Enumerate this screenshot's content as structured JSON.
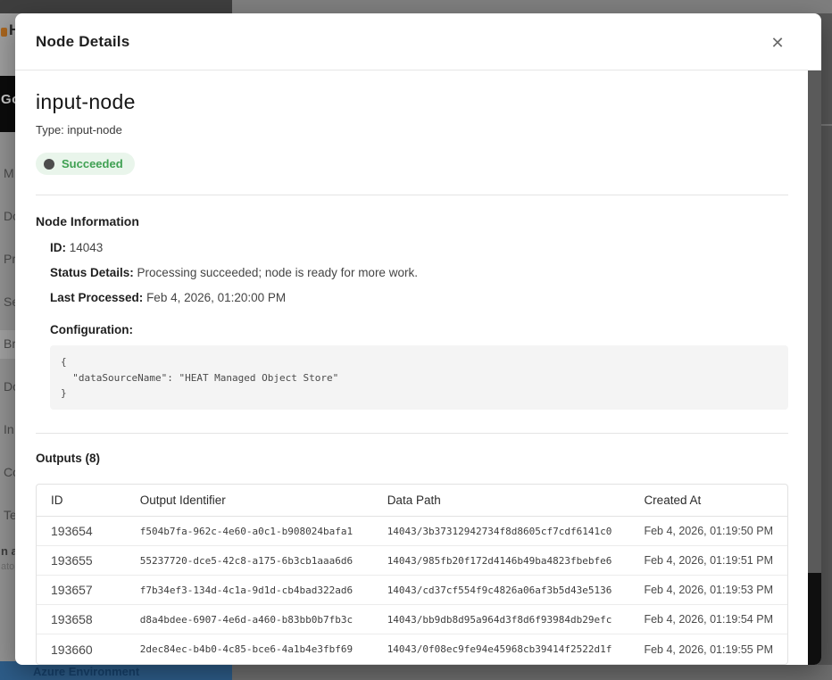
{
  "backdrop": {
    "header_fragment": "H",
    "logo_fragment": "Go",
    "sidebar_fragments": [
      "M",
      "Do",
      "Pr",
      "Se",
      "Br",
      "Do",
      "In",
      "Co",
      "Te"
    ],
    "sidebar_bold_fragment": "n a",
    "sidebar_small_fragment": "ator",
    "bottom_bar_label": "Azure Environment"
  },
  "modal": {
    "title": "Node Details",
    "close_glyph": "✕",
    "node_name": "input-node",
    "node_type_label": "Type: input-node",
    "status_label": "Succeeded",
    "node_information": {
      "heading": "Node Information",
      "id_label": "ID:",
      "id_value": "14043",
      "status_details_label": "Status Details:",
      "status_details_value": "Processing succeeded; node is ready for more work.",
      "last_processed_label": "Last Processed:",
      "last_processed_value": "Feb 4, 2026, 01:20:00 PM",
      "configuration_label": "Configuration:",
      "configuration_code": "{\n  \"dataSourceName\": \"HEAT Managed Object Store\"\n}"
    },
    "outputs": {
      "heading": "Outputs (8)",
      "columns": [
        "ID",
        "Output Identifier",
        "Data Path",
        "Created At"
      ],
      "rows": [
        {
          "id": "193654",
          "identifier": "f504b7fa-962c-4e60-a0c1-b908024bafa1",
          "data_path": "14043/3b37312942734f8d8605cf7cdf6141c0",
          "created_at": "Feb 4, 2026, 01:19:50 PM"
        },
        {
          "id": "193655",
          "identifier": "55237720-dce5-42c8-a175-6b3cb1aaa6d6",
          "data_path": "14043/985fb20f172d4146b49ba4823fbebfe6",
          "created_at": "Feb 4, 2026, 01:19:51 PM"
        },
        {
          "id": "193657",
          "identifier": "f7b34ef3-134d-4c1a-9d1d-cb4bad322ad6",
          "data_path": "14043/cd37cf554f9c4826a06af3b5d43e5136",
          "created_at": "Feb 4, 2026, 01:19:53 PM"
        },
        {
          "id": "193658",
          "identifier": "d8a4bdee-6907-4e6d-a460-b83bb0b7fb3c",
          "data_path": "14043/bb9db8d95a964d3f8d6f93984db29efc",
          "created_at": "Feb 4, 2026, 01:19:54 PM"
        },
        {
          "id": "193660",
          "identifier": "2dec84ec-b4b0-4c85-bce6-4a1b4e3fbf69",
          "data_path": "14043/0f08ec9fe94e45968cb39414f2522d1f",
          "created_at": "Feb 4, 2026, 01:19:55 PM"
        }
      ]
    }
  },
  "colors": {
    "status_text": "#3fa052",
    "status_bg": "#e9f5eb",
    "status_dot": "#4d4d4d",
    "azure_bar_bg": "#2d5c88",
    "azure_bar_text": "#16406b"
  }
}
